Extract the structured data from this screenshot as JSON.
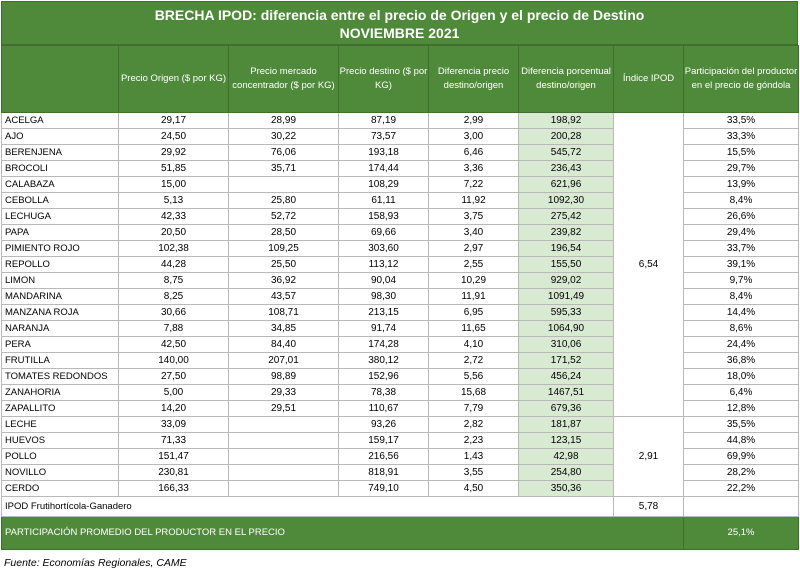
{
  "title": {
    "line1": "BRECHA IPOD: diferencia entre el precio de Origen y el precio de Destino",
    "line2": "NOVIEMBRE 2021"
  },
  "headers": {
    "origen": "Precio Origen ($ por KG)",
    "mercado": "Precio mercado concentrador ($ por KG)",
    "destino": "Precio destino ($ por KG)",
    "dif": "Diferencia precio destino/origen",
    "difpct": "Diferencia porcentual destino/origen",
    "indice": "Índice IPOD",
    "part": "Participación del productor en el precio de góndola"
  },
  "rows": [
    {
      "name": "ACELGA",
      "origen": "29,17",
      "mercado": "28,99",
      "destino": "87,19",
      "dif": "2,99",
      "difpct": "198,92",
      "part": "33,5%"
    },
    {
      "name": "AJO",
      "origen": "24,50",
      "mercado": "30,22",
      "destino": "73,57",
      "dif": "3,00",
      "difpct": "200,28",
      "part": "33,3%"
    },
    {
      "name": "BERENJENA",
      "origen": "29,92",
      "mercado": "76,06",
      "destino": "193,18",
      "dif": "6,46",
      "difpct": "545,72",
      "part": "15,5%"
    },
    {
      "name": "BROCOLI",
      "origen": "51,85",
      "mercado": "35,71",
      "destino": "174,44",
      "dif": "3,36",
      "difpct": "236,43",
      "part": "29,7%"
    },
    {
      "name": "CALABAZA",
      "origen": "15,00",
      "mercado": "",
      "destino": "108,29",
      "dif": "7,22",
      "difpct": "621,96",
      "part": "13,9%"
    },
    {
      "name": "CEBOLLA",
      "origen": "5,13",
      "mercado": "25,80",
      "destino": "61,11",
      "dif": "11,92",
      "difpct": "1092,30",
      "part": "8,4%"
    },
    {
      "name": "LECHUGA",
      "origen": "42,33",
      "mercado": "52,72",
      "destino": "158,93",
      "dif": "3,75",
      "difpct": "275,42",
      "part": "26,6%"
    },
    {
      "name": "PAPA",
      "origen": "20,50",
      "mercado": "28,50",
      "destino": "69,66",
      "dif": "3,40",
      "difpct": "239,82",
      "part": "29,4%"
    },
    {
      "name": "PIMIENTO ROJO",
      "origen": "102,38",
      "mercado": "109,25",
      "destino": "303,60",
      "dif": "2,97",
      "difpct": "196,54",
      "part": "33,7%"
    },
    {
      "name": "REPOLLO",
      "origen": "44,28",
      "mercado": "25,50",
      "destino": "113,12",
      "dif": "2,55",
      "difpct": "155,50",
      "part": "39,1%"
    },
    {
      "name": "LIMON",
      "origen": "8,75",
      "mercado": "36,92",
      "destino": "90,04",
      "dif": "10,29",
      "difpct": "929,02",
      "part": "9,7%"
    },
    {
      "name": "MANDARINA",
      "origen": "8,25",
      "mercado": "43,57",
      "destino": "98,30",
      "dif": "11,91",
      "difpct": "1091,49",
      "part": "8,4%"
    },
    {
      "name": "MANZANA ROJA",
      "origen": "30,66",
      "mercado": "108,71",
      "destino": "213,15",
      "dif": "6,95",
      "difpct": "595,33",
      "part": "14,4%"
    },
    {
      "name": "NARANJA",
      "origen": "7,88",
      "mercado": "34,85",
      "destino": "91,74",
      "dif": "11,65",
      "difpct": "1064,90",
      "part": "8,6%"
    },
    {
      "name": "PERA",
      "origen": "42,50",
      "mercado": "84,40",
      "destino": "174,28",
      "dif": "4,10",
      "difpct": "310,06",
      "part": "24,4%"
    },
    {
      "name": "FRUTILLA",
      "origen": "140,00",
      "mercado": "207,01",
      "destino": "380,12",
      "dif": "2,72",
      "difpct": "171,52",
      "part": "36,8%"
    },
    {
      "name": "TOMATES REDONDOS",
      "origen": "27,50",
      "mercado": "98,89",
      "destino": "152,96",
      "dif": "5,56",
      "difpct": "456,24",
      "part": "18,0%"
    },
    {
      "name": "ZANAHORIA",
      "origen": "5,00",
      "mercado": "29,33",
      "destino": "78,38",
      "dif": "15,68",
      "difpct": "1467,51",
      "part": "6,4%"
    },
    {
      "name": "ZAPALLITO",
      "origen": "14,20",
      "mercado": "29,51",
      "destino": "110,67",
      "dif": "7,79",
      "difpct": "679,36",
      "part": "12,8%"
    },
    {
      "name": "LECHE",
      "origen": "33,09",
      "mercado": "",
      "destino": "93,26",
      "dif": "2,82",
      "difpct": "181,87",
      "part": "35,5%"
    },
    {
      "name": "HUEVOS",
      "origen": "71,33",
      "mercado": "",
      "destino": "159,17",
      "dif": "2,23",
      "difpct": "123,15",
      "part": "44,8%"
    },
    {
      "name": "POLLO",
      "origen": "151,47",
      "mercado": "",
      "destino": "216,56",
      "dif": "1,43",
      "difpct": "42,98",
      "part": "69,9%"
    },
    {
      "name": "NOVILLO",
      "origen": "230,81",
      "mercado": "",
      "destino": "818,91",
      "dif": "3,55",
      "difpct": "254,80",
      "part": "28,2%"
    },
    {
      "name": "CERDO",
      "origen": "166,33",
      "mercado": "",
      "destino": "749,10",
      "dif": "4,50",
      "difpct": "350,36",
      "part": "22,2%"
    }
  ],
  "indice": {
    "frutihorticola": "6,54",
    "ganadero": "2,91",
    "combined_label": "IPOD Frutihortícola-Ganadero",
    "combined_value": "5,78"
  },
  "footer": {
    "label": "PARTICIPACIÓN PROMEDIO DEL PRODUCTOR EN EL PRECIO",
    "value": "25,1%"
  },
  "source": "Fuente: Economías Regionales, CAME",
  "colors": {
    "header_green": "#4f8a3a",
    "highlight_green": "#d9ead3"
  }
}
